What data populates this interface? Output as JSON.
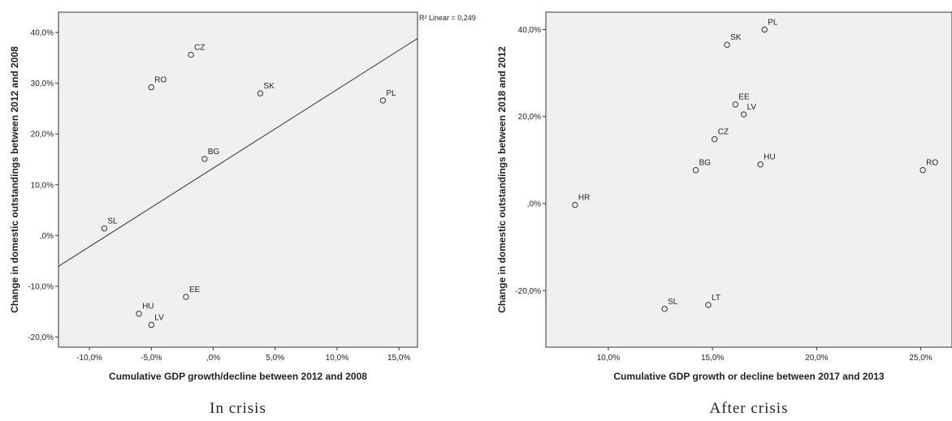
{
  "chart_data": [
    {
      "type": "scatter",
      "caption": "In crisis",
      "xlabel": "Cumulative GDP growth/decline between 2012 and 2008",
      "ylabel": "Change in domestic outstandings between 2012 and 2008",
      "xlim": [
        -12.5,
        16.5
      ],
      "ylim": [
        -22.0,
        44.0
      ],
      "x_ticks": [
        -10,
        -5,
        0,
        5,
        10,
        15
      ],
      "x_tick_labels": [
        "-10,0%",
        "-5,0%",
        ",0%",
        "5,0%",
        "10,0%",
        "15,0%"
      ],
      "y_ticks": [
        -20,
        -10,
        0,
        10,
        20,
        30,
        40
      ],
      "y_tick_labels": [
        "-20,0%",
        "-10,0%",
        ",0%",
        "10,0%",
        "20,0%",
        "30,0%",
        "40,0%"
      ],
      "grid": false,
      "points": [
        {
          "label": "CZ",
          "x": -1.8,
          "y": 35.6
        },
        {
          "label": "RO",
          "x": -5.0,
          "y": 29.2
        },
        {
          "label": "SK",
          "x": 3.8,
          "y": 28.0
        },
        {
          "label": "PL",
          "x": 13.7,
          "y": 26.6
        },
        {
          "label": "BG",
          "x": -0.7,
          "y": 15.1
        },
        {
          "label": "SL",
          "x": -8.8,
          "y": 1.4
        },
        {
          "label": "EE",
          "x": -2.2,
          "y": -12.1
        },
        {
          "label": "HU",
          "x": -6.0,
          "y": -15.4
        },
        {
          "label": "LV",
          "x": -5.0,
          "y": -17.6
        }
      ],
      "fit_line": {
        "label": "R² Linear = 0,249",
        "slope": 1.548,
        "intercept": 13.28
      }
    },
    {
      "type": "scatter",
      "caption": "After crisis",
      "xlabel": "Cumulative GDP growth or decline between 2017 and 2013",
      "ylabel": "Change in domestic outstandings between 2018 and 2012",
      "xlim": [
        7.0,
        26.5
      ],
      "ylim": [
        -33.0,
        44.0
      ],
      "x_ticks": [
        10,
        15,
        20,
        25
      ],
      "x_tick_labels": [
        "10,0%",
        "15,0%",
        "20,0%",
        "25,0%"
      ],
      "y_ticks": [
        -20,
        0,
        20,
        40
      ],
      "y_tick_labels": [
        "-20,0%",
        ",0%",
        "20,0%",
        "40,0%"
      ],
      "grid": false,
      "points": [
        {
          "label": "PL",
          "x": 17.5,
          "y": 40.0
        },
        {
          "label": "SK",
          "x": 15.7,
          "y": 36.5
        },
        {
          "label": "EE",
          "x": 16.1,
          "y": 22.8
        },
        {
          "label": "LV",
          "x": 16.5,
          "y": 20.5
        },
        {
          "label": "CZ",
          "x": 15.1,
          "y": 14.8
        },
        {
          "label": "HU",
          "x": 17.3,
          "y": 9.0
        },
        {
          "label": "BG",
          "x": 14.2,
          "y": 7.7
        },
        {
          "label": "RO",
          "x": 25.1,
          "y": 7.7
        },
        {
          "label": "HR",
          "x": 8.4,
          "y": -0.3
        },
        {
          "label": "SL",
          "x": 12.7,
          "y": -24.2
        },
        {
          "label": "LT",
          "x": 14.8,
          "y": -23.3
        }
      ]
    }
  ]
}
